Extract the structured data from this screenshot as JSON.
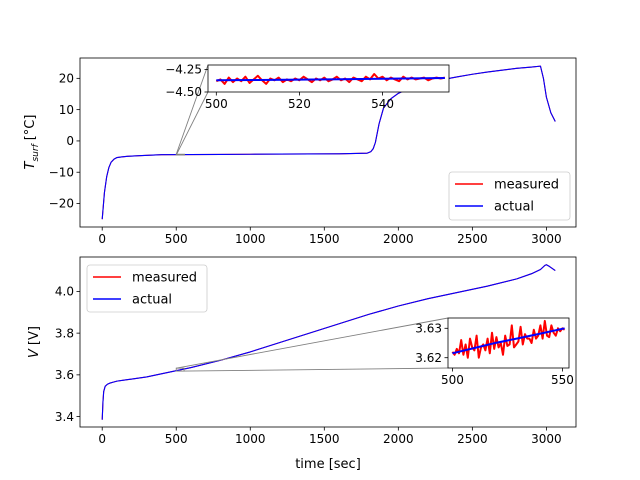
{
  "chart_data": [
    {
      "type": "line",
      "title": "",
      "xlabel": "",
      "ylabel_main": "T",
      "ylabel_sub": "surf",
      "ylabel_unit": "[°C]",
      "xlim": [
        -150,
        3200
      ],
      "ylim": [
        -27.5,
        26.5
      ],
      "xticks": [
        0,
        500,
        1000,
        1500,
        2000,
        2500,
        3000
      ],
      "yticks": [
        -20,
        -10,
        0,
        10,
        20
      ],
      "xtick_labels": [
        "0",
        "500",
        "1000",
        "1500",
        "2000",
        "2500",
        "3000"
      ],
      "ytick_labels": [
        "−20",
        "−10",
        "0",
        "10",
        "20"
      ],
      "legend": {
        "placement": "lower-right",
        "entries": [
          "measured",
          "actual"
        ]
      },
      "series": [
        {
          "name": "measured",
          "color": "#ff0000",
          "x": [
            0,
            15,
            30,
            45,
            60,
            80,
            100,
            130,
            170,
            250,
            400,
            600,
            800,
            1000,
            1200,
            1400,
            1600,
            1790,
            1815,
            1830,
            1845,
            1870,
            1900,
            1950,
            2000,
            2050,
            2100,
            2200,
            2300,
            2400,
            2500,
            2600,
            2700,
            2800,
            2900,
            2960,
            2980,
            3000,
            3030,
            3060
          ],
          "y": [
            -25,
            -16.5,
            -11.5,
            -8.5,
            -6.8,
            -5.8,
            -5.3,
            -5.1,
            -4.9,
            -4.7,
            -4.4,
            -4.35,
            -4.3,
            -4.25,
            -4.2,
            -4.15,
            -4.1,
            -3.9,
            -3.4,
            -2.5,
            -0.5,
            5.5,
            10.5,
            13.5,
            15.2,
            16.3,
            17.2,
            18.6,
            19.6,
            20.5,
            21.3,
            22.0,
            22.6,
            23.2,
            23.6,
            23.9,
            20.0,
            14.0,
            9.0,
            6.2
          ]
        },
        {
          "name": "actual",
          "color": "#0000ff",
          "x": [
            0,
            15,
            30,
            45,
            60,
            80,
            100,
            130,
            170,
            250,
            400,
            600,
            800,
            1000,
            1200,
            1400,
            1600,
            1790,
            1815,
            1830,
            1845,
            1870,
            1900,
            1950,
            2000,
            2050,
            2100,
            2200,
            2300,
            2400,
            2500,
            2600,
            2700,
            2800,
            2900,
            2960,
            2980,
            3000,
            3030,
            3060
          ],
          "y": [
            -25,
            -16.5,
            -11.5,
            -8.5,
            -6.8,
            -5.8,
            -5.3,
            -5.1,
            -4.9,
            -4.7,
            -4.4,
            -4.35,
            -4.3,
            -4.25,
            -4.2,
            -4.15,
            -4.1,
            -3.9,
            -3.4,
            -2.5,
            -0.5,
            5.5,
            10.5,
            13.5,
            15.2,
            16.3,
            17.2,
            18.6,
            19.6,
            20.5,
            21.3,
            22.0,
            22.6,
            23.2,
            23.6,
            23.9,
            20.0,
            14.0,
            9.0,
            6.2
          ]
        }
      ],
      "inset": {
        "xlim": [
          498,
          556
        ],
        "ylim": [
          -4.5,
          -4.2
        ],
        "xticks": [
          500,
          520,
          540
        ],
        "yticks": [
          -4.5,
          -4.25
        ],
        "xtick_labels": [
          "500",
          "520",
          "540"
        ],
        "ytick_labels": [
          "−4.50",
          "−4.25"
        ],
        "zoom_region": {
          "x": [
            500,
            556
          ],
          "y": [
            -4.5,
            -4.25
          ]
        },
        "series": [
          {
            "name": "measured",
            "color": "#ff0000",
            "x": [
              500,
              501,
              502,
              503,
              504,
              505,
              506,
              507,
              508,
              509,
              510,
              511,
              512,
              513,
              514,
              515,
              516,
              517,
              518,
              519,
              520,
              521,
              522,
              523,
              524,
              525,
              526,
              527,
              528,
              529,
              530,
              531,
              532,
              533,
              534,
              535,
              536,
              537,
              538,
              539,
              540,
              541,
              542,
              543,
              544,
              545,
              546,
              547,
              548,
              549,
              550,
              551,
              552,
              553,
              554,
              555
            ],
            "y": [
              -4.38,
              -4.36,
              -4.41,
              -4.34,
              -4.39,
              -4.35,
              -4.38,
              -4.33,
              -4.4,
              -4.36,
              -4.32,
              -4.37,
              -4.41,
              -4.35,
              -4.37,
              -4.34,
              -4.39,
              -4.36,
              -4.38,
              -4.35,
              -4.37,
              -4.33,
              -4.36,
              -4.39,
              -4.35,
              -4.37,
              -4.34,
              -4.38,
              -4.36,
              -4.33,
              -4.37,
              -4.35,
              -4.39,
              -4.34,
              -4.36,
              -4.38,
              -4.33,
              -4.36,
              -4.3,
              -4.35,
              -4.33,
              -4.37,
              -4.34,
              -4.36,
              -4.38,
              -4.33,
              -4.36,
              -4.34,
              -4.36,
              -4.35,
              -4.34,
              -4.37,
              -4.35,
              -4.34,
              -4.35,
              -4.34
            ]
          },
          {
            "name": "actual",
            "color": "#0000ff",
            "x": [
              500,
              510,
              520,
              530,
              540,
              550,
              555
            ],
            "y": [
              -4.37,
              -4.367,
              -4.362,
              -4.358,
              -4.353,
              -4.347,
              -4.345
            ]
          }
        ]
      }
    },
    {
      "type": "line",
      "title": "",
      "xlabel": "time [sec]",
      "ylabel_main": "V",
      "ylabel_sub": "",
      "ylabel_unit": "[V]",
      "xlim": [
        -150,
        3200
      ],
      "ylim": [
        3.35,
        4.165
      ],
      "xticks": [
        0,
        500,
        1000,
        1500,
        2000,
        2500,
        3000
      ],
      "yticks": [
        3.4,
        3.6,
        3.8,
        4.0
      ],
      "xtick_labels": [
        "0",
        "500",
        "1000",
        "1500",
        "2000",
        "2500",
        "3000"
      ],
      "ytick_labels": [
        "3.4",
        "3.6",
        "3.8",
        "4.0"
      ],
      "legend": {
        "placement": "upper-left",
        "entries": [
          "measured",
          "actual"
        ]
      },
      "series": [
        {
          "name": "measured",
          "color": "#ff0000",
          "x": [
            0,
            5,
            10,
            20,
            35,
            50,
            75,
            100,
            150,
            200,
            300,
            400,
            500,
            600,
            800,
            1000,
            1200,
            1400,
            1600,
            1800,
            2000,
            2200,
            2400,
            2600,
            2800,
            2900,
            2960,
            2990,
            3000,
            3020,
            3060
          ],
          "y": [
            3.385,
            3.47,
            3.52,
            3.545,
            3.555,
            3.56,
            3.565,
            3.57,
            3.575,
            3.58,
            3.59,
            3.605,
            3.62,
            3.635,
            3.67,
            3.71,
            3.755,
            3.8,
            3.845,
            3.89,
            3.93,
            3.965,
            3.995,
            4.025,
            4.06,
            4.085,
            4.105,
            4.125,
            4.128,
            4.12,
            4.1
          ]
        },
        {
          "name": "actual",
          "color": "#0000ff",
          "x": [
            0,
            5,
            10,
            20,
            35,
            50,
            75,
            100,
            150,
            200,
            300,
            400,
            500,
            600,
            800,
            1000,
            1200,
            1400,
            1600,
            1800,
            2000,
            2200,
            2400,
            2600,
            2800,
            2900,
            2960,
            2990,
            3000,
            3020,
            3060
          ],
          "y": [
            3.385,
            3.47,
            3.52,
            3.545,
            3.555,
            3.56,
            3.565,
            3.57,
            3.575,
            3.58,
            3.59,
            3.605,
            3.62,
            3.635,
            3.67,
            3.71,
            3.755,
            3.8,
            3.845,
            3.89,
            3.93,
            3.965,
            3.995,
            4.025,
            4.06,
            4.085,
            4.105,
            4.125,
            4.128,
            4.12,
            4.1
          ]
        }
      ],
      "inset": {
        "xlim": [
          498,
          553
        ],
        "ylim": [
          3.6165,
          3.6335
        ],
        "xticks": [
          500,
          550
        ],
        "yticks": [
          3.62,
          3.63
        ],
        "xtick_labels": [
          "500",
          "550"
        ],
        "ytick_labels": [
          "3.62",
          "3.63"
        ],
        "zoom_region": {
          "x": [
            500,
            553
          ],
          "y": [
            3.618,
            3.632
          ]
        },
        "series": [
          {
            "name": "measured",
            "color": "#ff0000",
            "x": [
              500,
              501,
              502,
              503,
              504,
              505,
              506,
              507,
              508,
              509,
              510,
              511,
              512,
              513,
              514,
              515,
              516,
              517,
              518,
              519,
              520,
              521,
              522,
              523,
              524,
              525,
              526,
              527,
              528,
              529,
              530,
              531,
              532,
              533,
              534,
              535,
              536,
              537,
              538,
              539,
              540,
              541,
              542,
              543,
              544,
              545,
              546,
              547,
              548,
              549,
              550,
              551
            ],
            "y": [
              3.622,
              3.621,
              3.623,
              3.6215,
              3.626,
              3.621,
              3.6245,
              3.62,
              3.6265,
              3.6235,
              3.6225,
              3.6275,
              3.62,
              3.6235,
              3.6245,
              3.6225,
              3.6265,
              3.6215,
              3.6285,
              3.623,
              3.627,
              3.6235,
              3.625,
              3.621,
              3.6275,
              3.624,
              3.6245,
              3.631,
              3.6235,
              3.6245,
              3.6255,
              3.6305,
              3.6245,
              3.628,
              3.6265,
              3.6265,
              3.625,
              3.6295,
              3.6265,
              3.6275,
              3.631,
              3.6265,
              3.6325,
              3.6275,
              3.627,
              3.631,
              3.6285,
              3.6275,
              3.63,
              3.629,
              3.63,
              3.6295
            ]
          },
          {
            "name": "actual",
            "color": "#0000ff",
            "x": [
              500,
              510,
              520,
              530,
              540,
              551
            ],
            "y": [
              3.6215,
              3.6233,
              3.6251,
              3.6266,
              3.6282,
              3.63
            ]
          }
        ]
      }
    }
  ]
}
